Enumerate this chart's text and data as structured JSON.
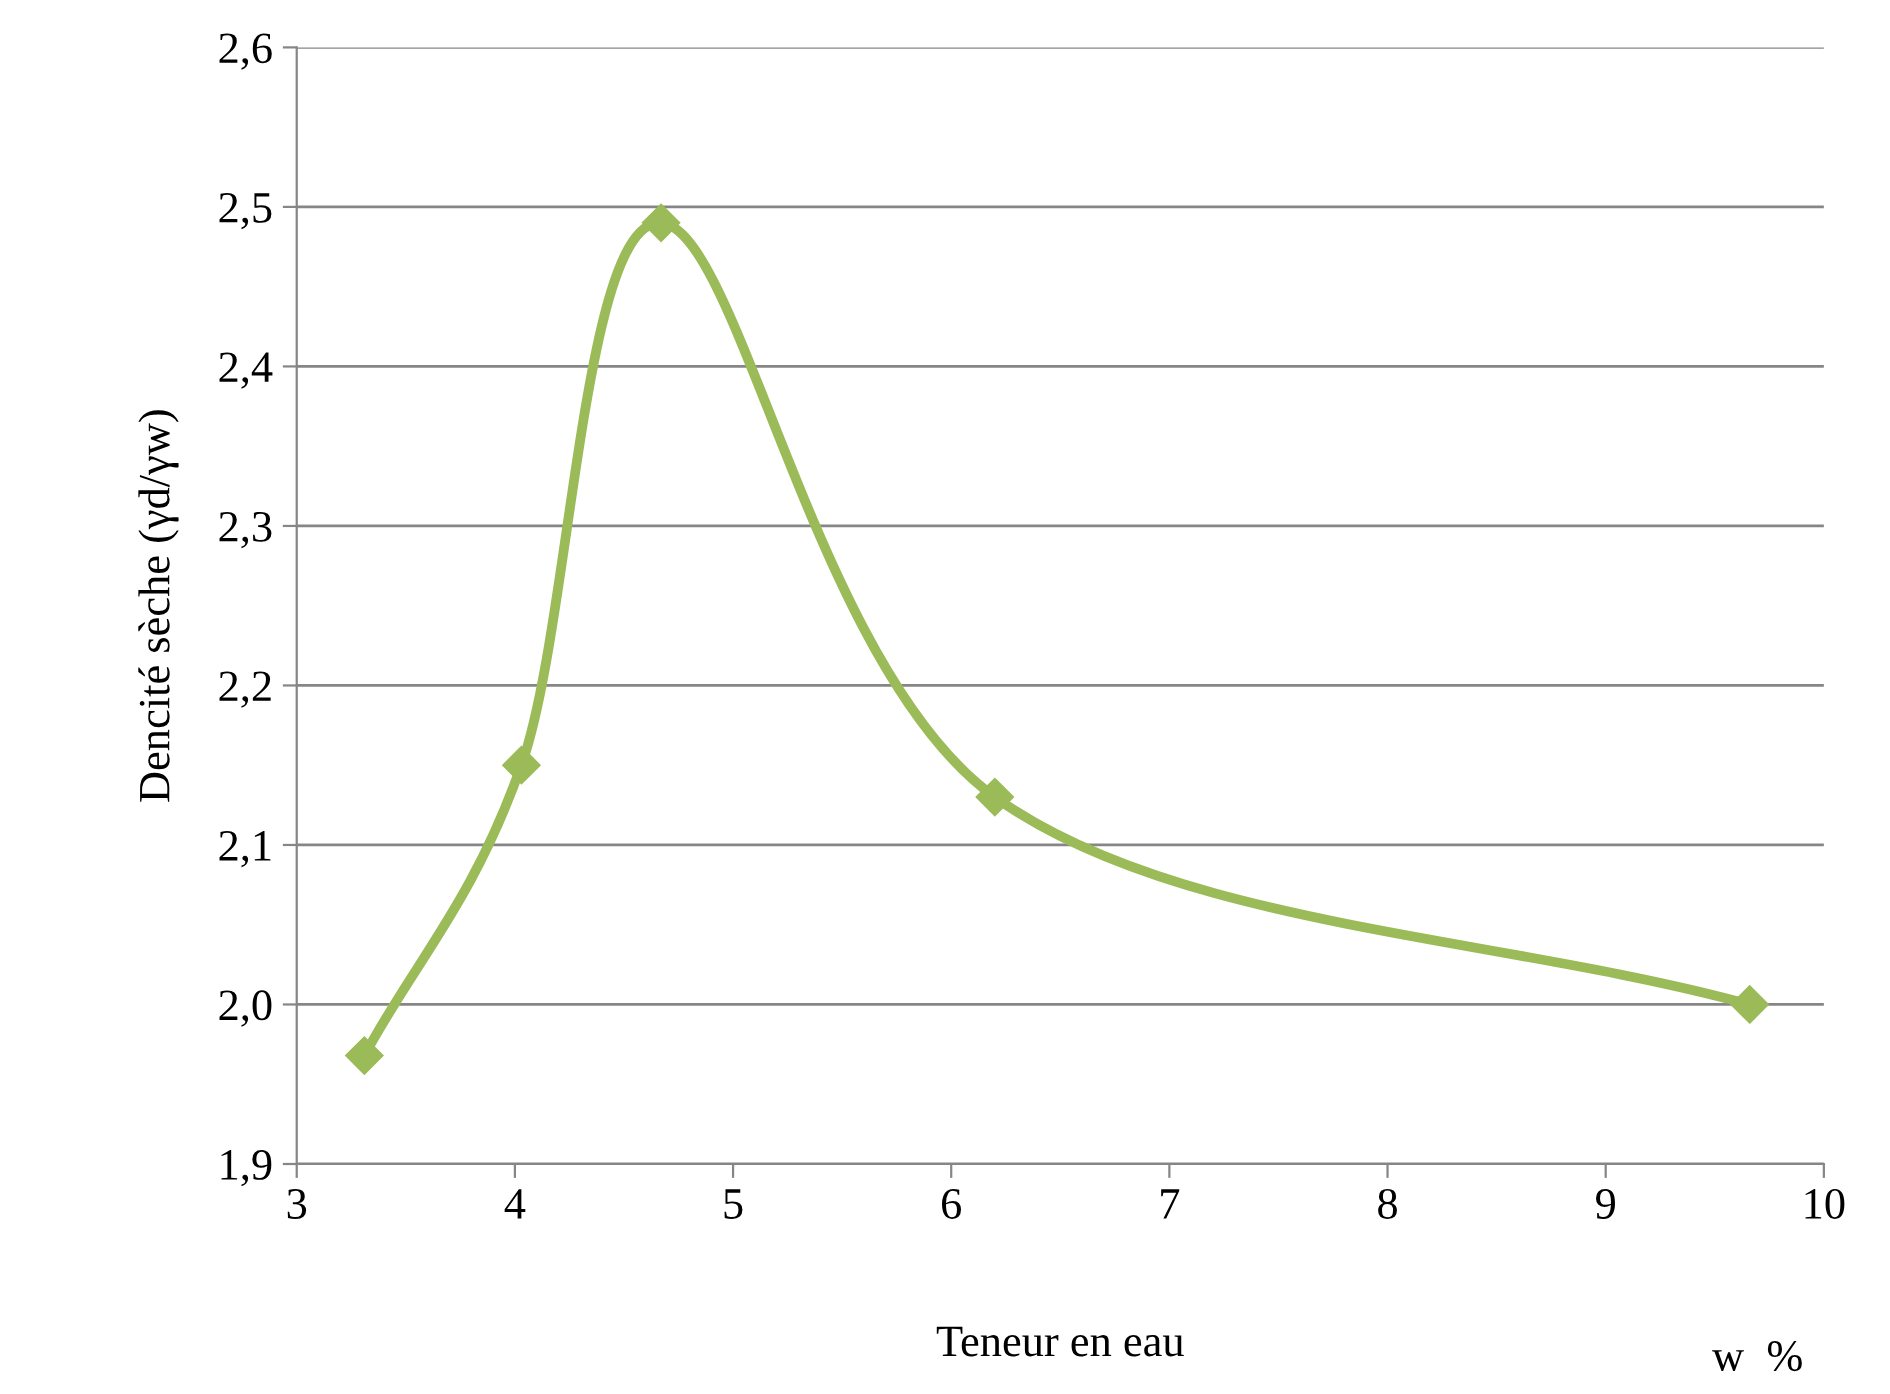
{
  "chart_data": {
    "type": "line",
    "xlabel": "Teneur en eau",
    "ylabel": "Dencité sèche (γd/γw)",
    "annotations": [
      "w  %"
    ],
    "x": [
      3.31,
      4.03,
      4.67,
      6.2,
      9.66
    ],
    "series": [
      {
        "color": "#9bbb59",
        "values": [
          1.968,
          2.15,
          2.49,
          2.13,
          2.0
        ]
      }
    ],
    "xlim": [
      3,
      10
    ],
    "xticks": [
      3,
      4,
      5,
      6,
      7,
      8,
      9,
      10
    ],
    "ylim": [
      1.9,
      2.6
    ],
    "yticks": [
      {
        "value": 1.9,
        "label": "1,9"
      },
      {
        "value": 2.0,
        "label": "2,0"
      },
      {
        "value": 2.1,
        "label": "2,1"
      },
      {
        "value": 2.2,
        "label": "2,2"
      },
      {
        "value": 2.3,
        "label": "2,3"
      },
      {
        "value": 2.4,
        "label": "2,4"
      },
      {
        "value": 2.5,
        "label": "2,5"
      },
      {
        "value": 2.6,
        "label": "2,6"
      }
    ],
    "grid": "y",
    "marker": "diamond",
    "line_style": "solid",
    "legend": false
  }
}
